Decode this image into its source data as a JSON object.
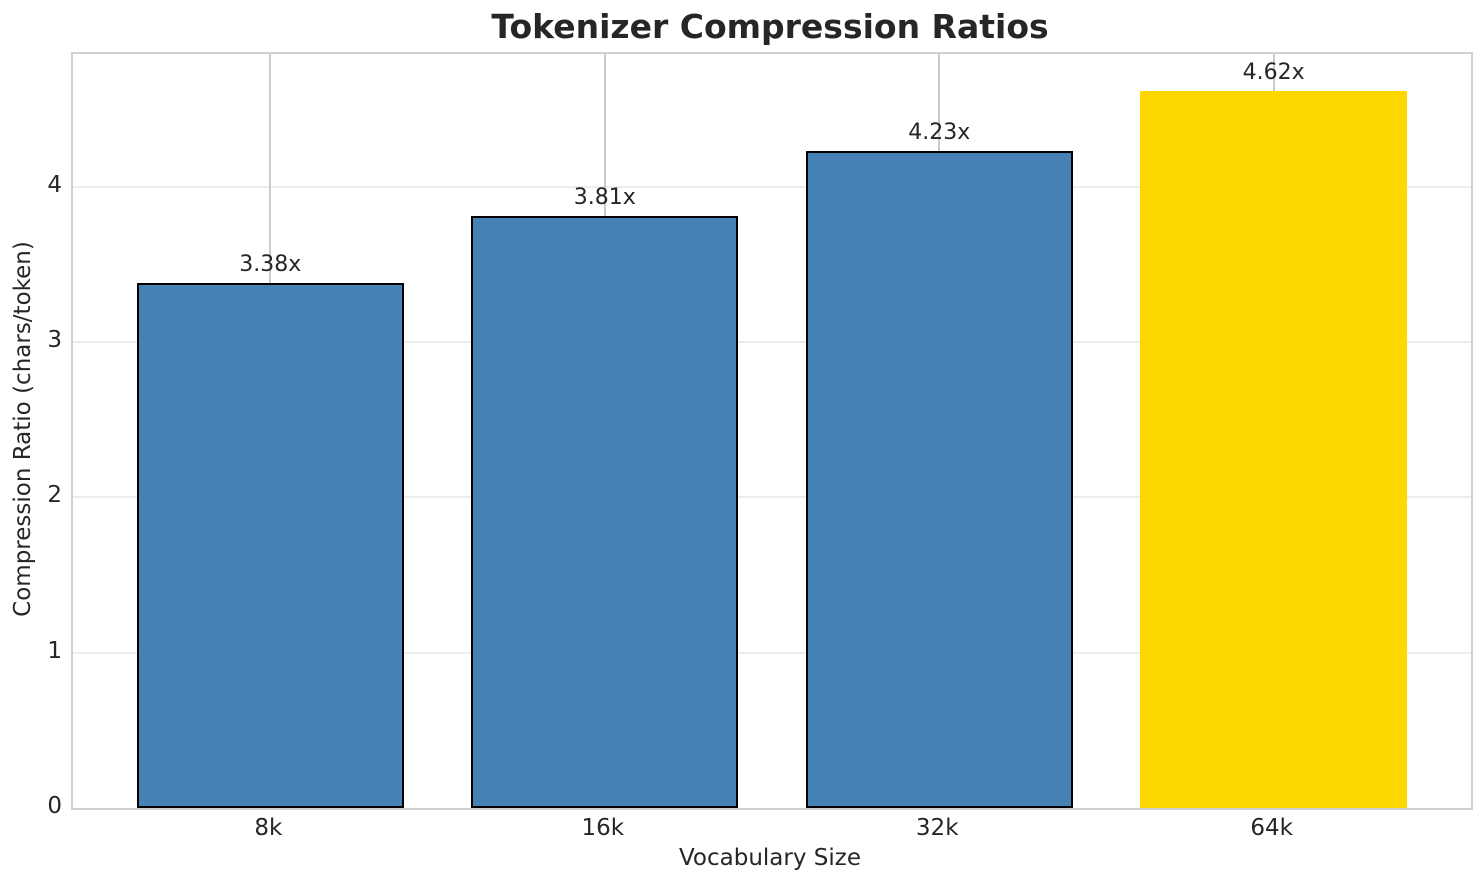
{
  "chart_data": {
    "type": "bar",
    "title": "Tokenizer Compression Ratios",
    "xlabel": "Vocabulary Size",
    "ylabel": "Compression Ratio (chars/token)",
    "categories": [
      "8k",
      "16k",
      "32k",
      "64k"
    ],
    "values": [
      3.38,
      3.81,
      4.23,
      4.62
    ],
    "value_labels": [
      "3.38x",
      "3.81x",
      "4.23x",
      "4.62x"
    ],
    "bar_colors": [
      "#4682B4",
      "#4682B4",
      "#4682B4",
      "#FFD700"
    ],
    "bar_edge_colors": [
      "#000000",
      "#000000",
      "#000000",
      "none"
    ],
    "yticks": [
      0,
      1,
      2,
      3,
      4
    ],
    "ylim": [
      0,
      4.856
    ],
    "xlim": [
      -0.59,
      3.59
    ],
    "grid": true,
    "legend_position": "none",
    "colors": {
      "bar_default": "#4682B4",
      "bar_highlight": "#FFD700",
      "text": "#262626",
      "spine": "#d0d0d0",
      "grid_vertical": "#cbcbcb",
      "grid_horizontal": "#ececec"
    }
  }
}
